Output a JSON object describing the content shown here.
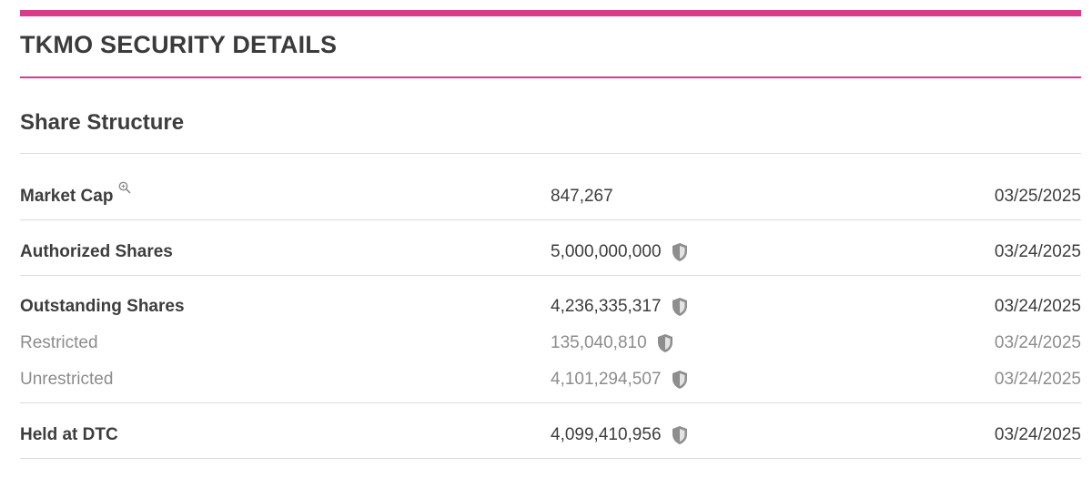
{
  "page": {
    "title": "TKMO SECURITY DETAILS",
    "accent_color": "#d83a8c"
  },
  "section": {
    "title": "Share Structure"
  },
  "rows": [
    {
      "label": "Market Cap",
      "value": "847,267",
      "date": "03/25/2025",
      "icon": "zoom-icon"
    },
    {
      "label": "Authorized Shares",
      "value": "5,000,000,000",
      "date": "03/24/2025",
      "icon": "shield-icon"
    },
    {
      "label": "Outstanding Shares",
      "value": "4,236,335,317",
      "date": "03/24/2025",
      "icon": "shield-icon"
    },
    {
      "label": "Restricted",
      "value": "135,040,810",
      "date": "03/24/2025",
      "icon": "shield-icon"
    },
    {
      "label": "Unrestricted",
      "value": "4,101,294,507",
      "date": "03/24/2025",
      "icon": "shield-icon"
    },
    {
      "label": "Held at DTC",
      "value": "4,099,410,956",
      "date": "03/24/2025",
      "icon": "shield-icon"
    }
  ]
}
